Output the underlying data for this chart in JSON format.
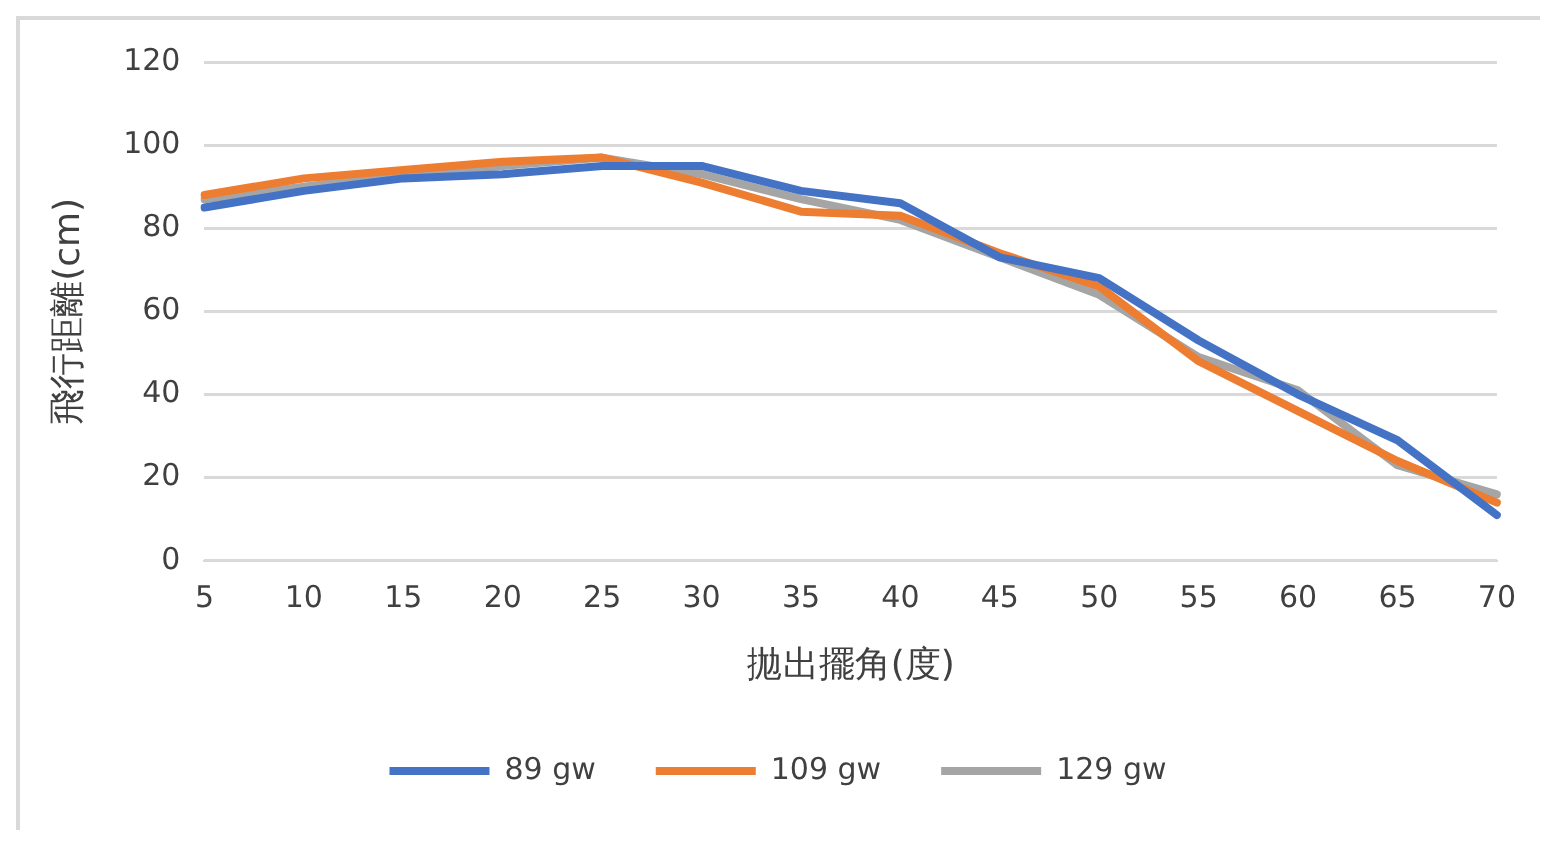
{
  "chart_data": {
    "type": "line",
    "xlabel": "拋出擺角(度)",
    "ylabel": "飛行距離(cm)",
    "categories": [
      "5",
      "10",
      "15",
      "20",
      "25",
      "30",
      "35",
      "40",
      "45",
      "50",
      "55",
      "60",
      "65",
      "70"
    ],
    "ylim": [
      0,
      120
    ],
    "yticks": [
      0,
      20,
      40,
      60,
      80,
      100,
      120
    ],
    "grid": "y",
    "legend": "bottom",
    "marker": "none",
    "line_style": "solid",
    "series": [
      {
        "name": "89 gw",
        "color": "#4472c4",
        "values": [
          85,
          89,
          92,
          93,
          95,
          95,
          89,
          86,
          73,
          68,
          53,
          40,
          29,
          11
        ]
      },
      {
        "name": "109 gw",
        "color": "#ed7d31",
        "values": [
          88,
          92,
          94,
          96,
          97,
          91,
          84,
          83,
          74,
          66,
          48,
          36,
          24,
          14
        ]
      },
      {
        "name": "129 gw",
        "color": "#a5a5a5",
        "values": [
          87,
          90,
          93,
          95,
          97,
          93,
          87,
          82,
          73,
          64,
          49,
          41,
          23,
          16
        ]
      }
    ]
  }
}
